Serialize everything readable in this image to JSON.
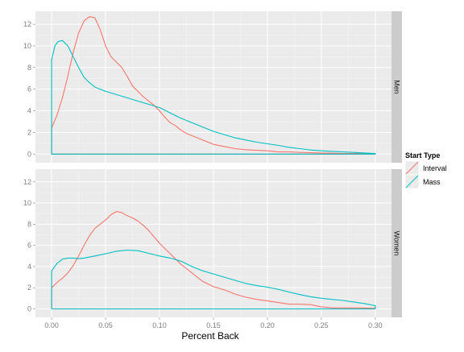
{
  "chart_data": {
    "type": "line",
    "subtype": "density",
    "xlabel": "Percent Back",
    "x_ticks": [
      0.0,
      0.05,
      0.1,
      0.15,
      0.2,
      0.25,
      0.3
    ],
    "x_tick_labels": [
      "0.00",
      "0.05",
      "0.10",
      "0.15",
      "0.20",
      "0.25",
      "0.30"
    ],
    "xlim": [
      -0.015,
      0.315
    ],
    "ylim": [
      -0.8,
      13.2
    ],
    "y_ticks": [
      0,
      2,
      4,
      6,
      8,
      10,
      12
    ],
    "y_tick_labels": [
      "0",
      "2",
      "4",
      "6",
      "8",
      "10",
      "12"
    ],
    "grid": true,
    "background": "#ebebeb",
    "legend": {
      "title": "Start Type",
      "position": "right",
      "entries": [
        {
          "label": "Interval",
          "color": "#F8766D"
        },
        {
          "label": "Mass",
          "color": "#00BFC4"
        }
      ]
    },
    "facets": [
      {
        "label": "Men",
        "series": [
          {
            "name": "Interval",
            "color": "#F8766D",
            "x": [
              0.0,
              0.005,
              0.01,
              0.015,
              0.02,
              0.025,
              0.03,
              0.035,
              0.04,
              0.045,
              0.05,
              0.055,
              0.06,
              0.065,
              0.07,
              0.075,
              0.08,
              0.085,
              0.09,
              0.095,
              0.1,
              0.105,
              0.11,
              0.115,
              0.12,
              0.125,
              0.13,
              0.14,
              0.15,
              0.16,
              0.17,
              0.18,
              0.19,
              0.2,
              0.21,
              0.22,
              0.23,
              0.24,
              0.25,
              0.26,
              0.27,
              0.28,
              0.29,
              0.3
            ],
            "y": [
              2.4,
              3.6,
              5.2,
              7.2,
              9.4,
              11.2,
              12.3,
              12.7,
              12.6,
              11.5,
              10.0,
              9.0,
              8.5,
              8.0,
              7.2,
              6.3,
              5.8,
              5.3,
              4.9,
              4.5,
              4.0,
              3.4,
              2.9,
              2.6,
              2.2,
              1.9,
              1.7,
              1.3,
              0.9,
              0.7,
              0.5,
              0.4,
              0.35,
              0.3,
              0.2,
              0.2,
              0.15,
              0.12,
              0.1,
              0.08,
              0.06,
              0.05,
              0.04,
              0.02
            ]
          },
          {
            "name": "Mass",
            "color": "#00BFC4",
            "x": [
              0.0,
              0.003,
              0.006,
              0.01,
              0.015,
              0.02,
              0.025,
              0.03,
              0.035,
              0.04,
              0.045,
              0.05,
              0.06,
              0.07,
              0.08,
              0.09,
              0.1,
              0.11,
              0.12,
              0.13,
              0.14,
              0.15,
              0.16,
              0.17,
              0.18,
              0.19,
              0.2,
              0.21,
              0.22,
              0.23,
              0.24,
              0.25,
              0.26,
              0.27,
              0.28,
              0.29,
              0.3
            ],
            "y": [
              8.7,
              10.0,
              10.4,
              10.5,
              10.0,
              9.0,
              8.0,
              7.1,
              6.6,
              6.2,
              6.0,
              5.8,
              5.5,
              5.2,
              4.9,
              4.6,
              4.3,
              3.8,
              3.3,
              2.9,
              2.5,
              2.1,
              1.8,
              1.5,
              1.3,
              1.1,
              0.95,
              0.8,
              0.62,
              0.5,
              0.38,
              0.3,
              0.25,
              0.2,
              0.15,
              0.1,
              0.06
            ]
          }
        ]
      },
      {
        "label": "Women",
        "series": [
          {
            "name": "Interval",
            "color": "#F8766D",
            "x": [
              0.0,
              0.005,
              0.01,
              0.015,
              0.02,
              0.025,
              0.03,
              0.035,
              0.04,
              0.045,
              0.05,
              0.055,
              0.06,
              0.065,
              0.07,
              0.075,
              0.08,
              0.085,
              0.09,
              0.095,
              0.1,
              0.105,
              0.11,
              0.115,
              0.12,
              0.125,
              0.13,
              0.14,
              0.15,
              0.16,
              0.17,
              0.18,
              0.19,
              0.2,
              0.21,
              0.22,
              0.23,
              0.24,
              0.25,
              0.26,
              0.27,
              0.28,
              0.29,
              0.3
            ],
            "y": [
              2.0,
              2.5,
              2.9,
              3.4,
              4.1,
              5.0,
              6.0,
              6.9,
              7.6,
              8.0,
              8.4,
              8.9,
              9.2,
              9.1,
              8.8,
              8.6,
              8.3,
              7.9,
              7.4,
              6.8,
              6.2,
              5.7,
              5.2,
              4.7,
              4.2,
              3.8,
              3.4,
              2.6,
              2.1,
              1.8,
              1.4,
              1.1,
              0.9,
              0.75,
              0.6,
              0.45,
              0.45,
              0.4,
              0.2,
              0.1,
              0.1,
              0.1,
              0.08,
              0.06
            ]
          },
          {
            "name": "Mass",
            "color": "#00BFC4",
            "x": [
              0.0,
              0.005,
              0.01,
              0.015,
              0.02,
              0.025,
              0.03,
              0.04,
              0.05,
              0.06,
              0.07,
              0.08,
              0.09,
              0.1,
              0.11,
              0.12,
              0.13,
              0.14,
              0.15,
              0.16,
              0.17,
              0.18,
              0.19,
              0.2,
              0.21,
              0.22,
              0.23,
              0.24,
              0.25,
              0.26,
              0.27,
              0.28,
              0.29,
              0.3
            ],
            "y": [
              3.6,
              4.3,
              4.7,
              4.8,
              4.8,
              4.75,
              4.8,
              5.0,
              5.2,
              5.45,
              5.55,
              5.5,
              5.25,
              5.0,
              4.8,
              4.5,
              4.0,
              3.6,
              3.3,
              3.0,
              2.7,
              2.4,
              2.2,
              2.05,
              1.85,
              1.6,
              1.35,
              1.15,
              1.0,
              0.9,
              0.8,
              0.65,
              0.5,
              0.3
            ]
          }
        ]
      }
    ]
  }
}
